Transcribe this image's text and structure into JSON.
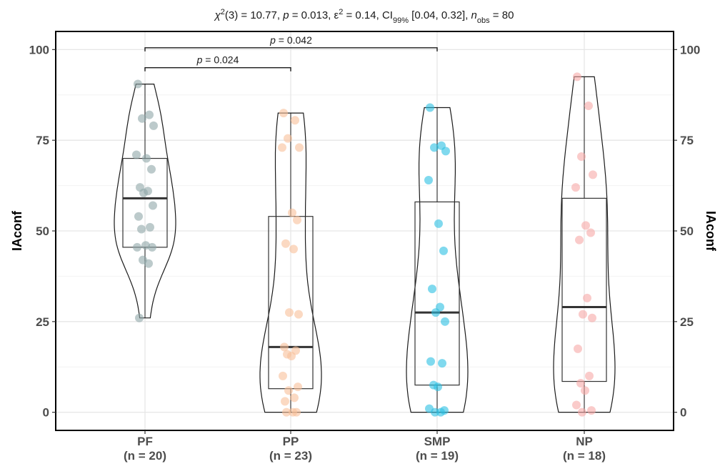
{
  "chart_data": {
    "type": "violin-box-scatter",
    "title": {
      "stat_symbol": "χ",
      "stat_sup": "2",
      "stat_rest": "(3) = 10.77, ",
      "p_symbol": "p",
      "p_rest": " = 0.013, ",
      "eps_symbol": "ε",
      "eps_sup": "2",
      "eps_rest": " = 0.14, CI",
      "ci_sub": "99%",
      "ci_rest": " [0.04, 0.32], ",
      "n_symbol": "n",
      "n_sub": "obs",
      "n_rest": " = 80"
    },
    "ylabel": "IAconf",
    "ylabel_right": "IAconf",
    "ylim": [
      -5,
      105
    ],
    "yticks": [
      0,
      25,
      50,
      75,
      100
    ],
    "grid": true,
    "categories": [
      {
        "label": "PF",
        "n_label": "(n = 20)",
        "color": "#8fa7a9",
        "q1": 45.5,
        "median": 59,
        "q3": 70,
        "min": 26,
        "max": 90.5,
        "points": [
          90.5,
          82,
          81,
          79,
          71,
          70,
          67,
          62,
          61,
          60.5,
          57,
          54,
          51,
          50.5,
          46,
          45.5,
          45.5,
          42,
          41,
          26
        ]
      },
      {
        "label": "PP",
        "n_label": "(n = 23)",
        "color": "#f8bf99",
        "q1": 6.5,
        "median": 18,
        "q3": 54,
        "min": 0,
        "max": 82.5,
        "points": [
          82.5,
          80.5,
          75.5,
          73,
          73,
          55,
          53,
          46.5,
          45,
          27.5,
          27,
          18,
          17,
          16,
          15.5,
          10,
          7,
          6,
          4,
          3,
          0,
          0,
          0
        ]
      },
      {
        "label": "SMP",
        "n_label": "(n = 19)",
        "color": "#2bbfe3",
        "q1": 7.5,
        "median": 27.5,
        "q3": 58,
        "min": 0,
        "max": 84,
        "points": [
          84,
          73.5,
          73,
          72,
          64,
          52,
          44.5,
          34,
          29,
          27.5,
          25,
          14,
          13.5,
          7.5,
          7,
          1,
          0.5,
          0,
          0
        ]
      },
      {
        "label": "NP",
        "n_label": "(n = 18)",
        "color": "#f6a8a6",
        "q1": 8.5,
        "median": 29,
        "q3": 59,
        "min": 0,
        "max": 92.5,
        "points": [
          92.5,
          84.5,
          70.5,
          65.5,
          62,
          51.5,
          49.5,
          47.5,
          31.5,
          27,
          26,
          17.5,
          10,
          8,
          6,
          2,
          0.5,
          0
        ]
      }
    ],
    "comparisons": [
      {
        "from": 0,
        "to": 1,
        "label": "p = 0.024",
        "y": 95
      },
      {
        "from": 0,
        "to": 2,
        "label": "p = 0.042",
        "y": 100.5
      }
    ]
  }
}
